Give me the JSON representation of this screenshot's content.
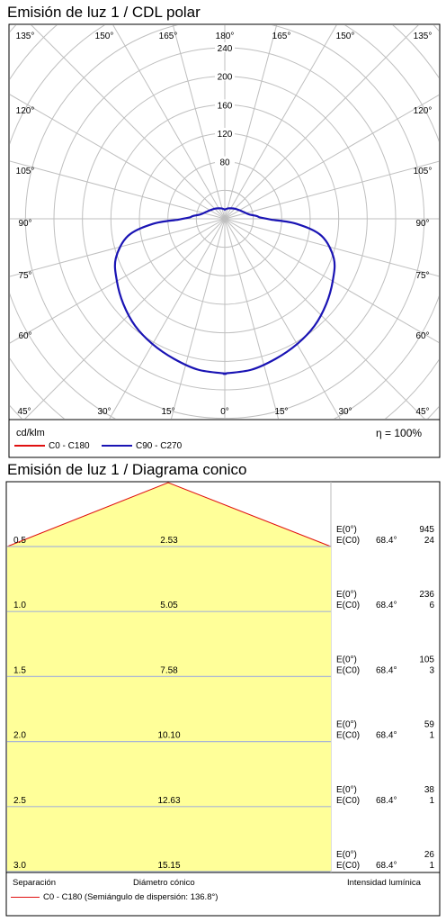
{
  "polar": {
    "title": "Emisión de luz 1 / CDL polar",
    "unit": "cd/klm",
    "efficiency": "η = 100%",
    "legend": [
      {
        "label": "C0 - C180",
        "color": "#e01010"
      },
      {
        "label": "C90 - C270",
        "color": "#1a14b4"
      }
    ]
  },
  "conic": {
    "title": "Emisión de luz 1 / Diagrama conico",
    "footer": {
      "separation": "Separación",
      "diameter": "Diámetro cónico",
      "intensity": "Intensidad lumínica",
      "legend_label": "C0 - C180 (Semiángulo de dispersión: 136.8°)"
    }
  },
  "chart_data": [
    {
      "type": "polar",
      "title": "Emisión de luz 1 / CDL polar",
      "unit": "cd/klm",
      "radial_ticks": [
        80,
        120,
        160,
        200,
        240
      ],
      "rmax": 240,
      "angle_labels_top": [
        "135°",
        "150°",
        "165°",
        "180°",
        "165°",
        "150°",
        "135°"
      ],
      "angle_labels_side": [
        "120°",
        "105°",
        "90°",
        "75°",
        "60°"
      ],
      "angle_labels_bottom": [
        "45°",
        "30°",
        "15°",
        "0°",
        "15°",
        "30°",
        "45°"
      ],
      "efficiency_percent": 100,
      "series": [
        {
          "name": "C90 - C270",
          "color": "#1a14b4",
          "angles_deg": [
            0,
            10,
            20,
            30,
            40,
            50,
            60,
            70,
            80,
            86,
            89,
            92,
            95,
            100,
            110,
            120,
            135,
            150,
            165,
            180
          ],
          "values": [
            217,
            215,
            209,
            203,
            196,
            186,
            175,
            163,
            138,
            101,
            65,
            50,
            45,
            35,
            28,
            24,
            20,
            17,
            15,
            13
          ]
        }
      ]
    },
    {
      "type": "table",
      "title": "Emisión de luz 1 / Diagrama conico",
      "columns": [
        "Separación",
        "Diámetro cónico",
        "E(0°)",
        "E(C0)"
      ],
      "semi_angle": "68.4°",
      "rows": [
        {
          "separation": "0.5",
          "diameter": "2.53",
          "e0": "945",
          "ec0": "24"
        },
        {
          "separation": "1.0",
          "diameter": "5.05",
          "e0": "236",
          "ec0": "6"
        },
        {
          "separation": "1.5",
          "diameter": "7.58",
          "e0": "105",
          "ec0": "3"
        },
        {
          "separation": "2.0",
          "diameter": "10.10",
          "e0": "59",
          "ec0": "1"
        },
        {
          "separation": "2.5",
          "diameter": "12.63",
          "e0": "38",
          "ec0": "1"
        },
        {
          "separation": "3.0",
          "diameter": "15.15",
          "e0": "26",
          "ec0": "1"
        }
      ],
      "e0_label": "E(0°)",
      "ec0_label": "E(C0)"
    }
  ]
}
